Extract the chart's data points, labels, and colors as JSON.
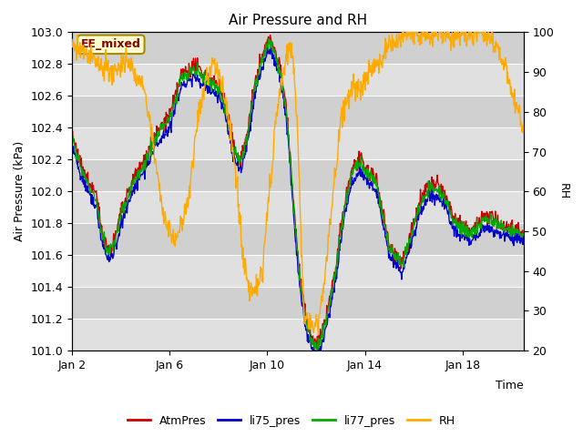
{
  "title": "Air Pressure and RH",
  "xlabel": "Time",
  "ylabel_left": "Air Pressure (kPa)",
  "ylabel_right": "RH",
  "ylim_left": [
    101.0,
    103.0
  ],
  "ylim_right": [
    20,
    100
  ],
  "yticks_left": [
    101.0,
    101.2,
    101.4,
    101.6,
    101.8,
    102.0,
    102.2,
    102.4,
    102.6,
    102.8,
    103.0
  ],
  "yticks_right": [
    20,
    30,
    40,
    50,
    60,
    70,
    80,
    90,
    100
  ],
  "xtick_labels": [
    "Jan 2",
    "Jan 6",
    "Jan 10",
    "Jan 14",
    "Jan 18"
  ],
  "xtick_positions": [
    1,
    5,
    9,
    13,
    17
  ],
  "xlim": [
    1,
    19.5
  ],
  "colors": {
    "AtmPres": "#cc0000",
    "li75_pres": "#0000cc",
    "li77_pres": "#00aa00",
    "RH": "#ffaa00"
  },
  "annotation_text": "EE_mixed",
  "annotation_fg": "#880000",
  "annotation_bg": "#ffffd0",
  "annotation_edge": "#aa8800",
  "band_colors": [
    "#e0e0e0",
    "#d0d0d0"
  ],
  "title_fontsize": 11,
  "axis_fontsize": 9,
  "label_fontsize": 9
}
